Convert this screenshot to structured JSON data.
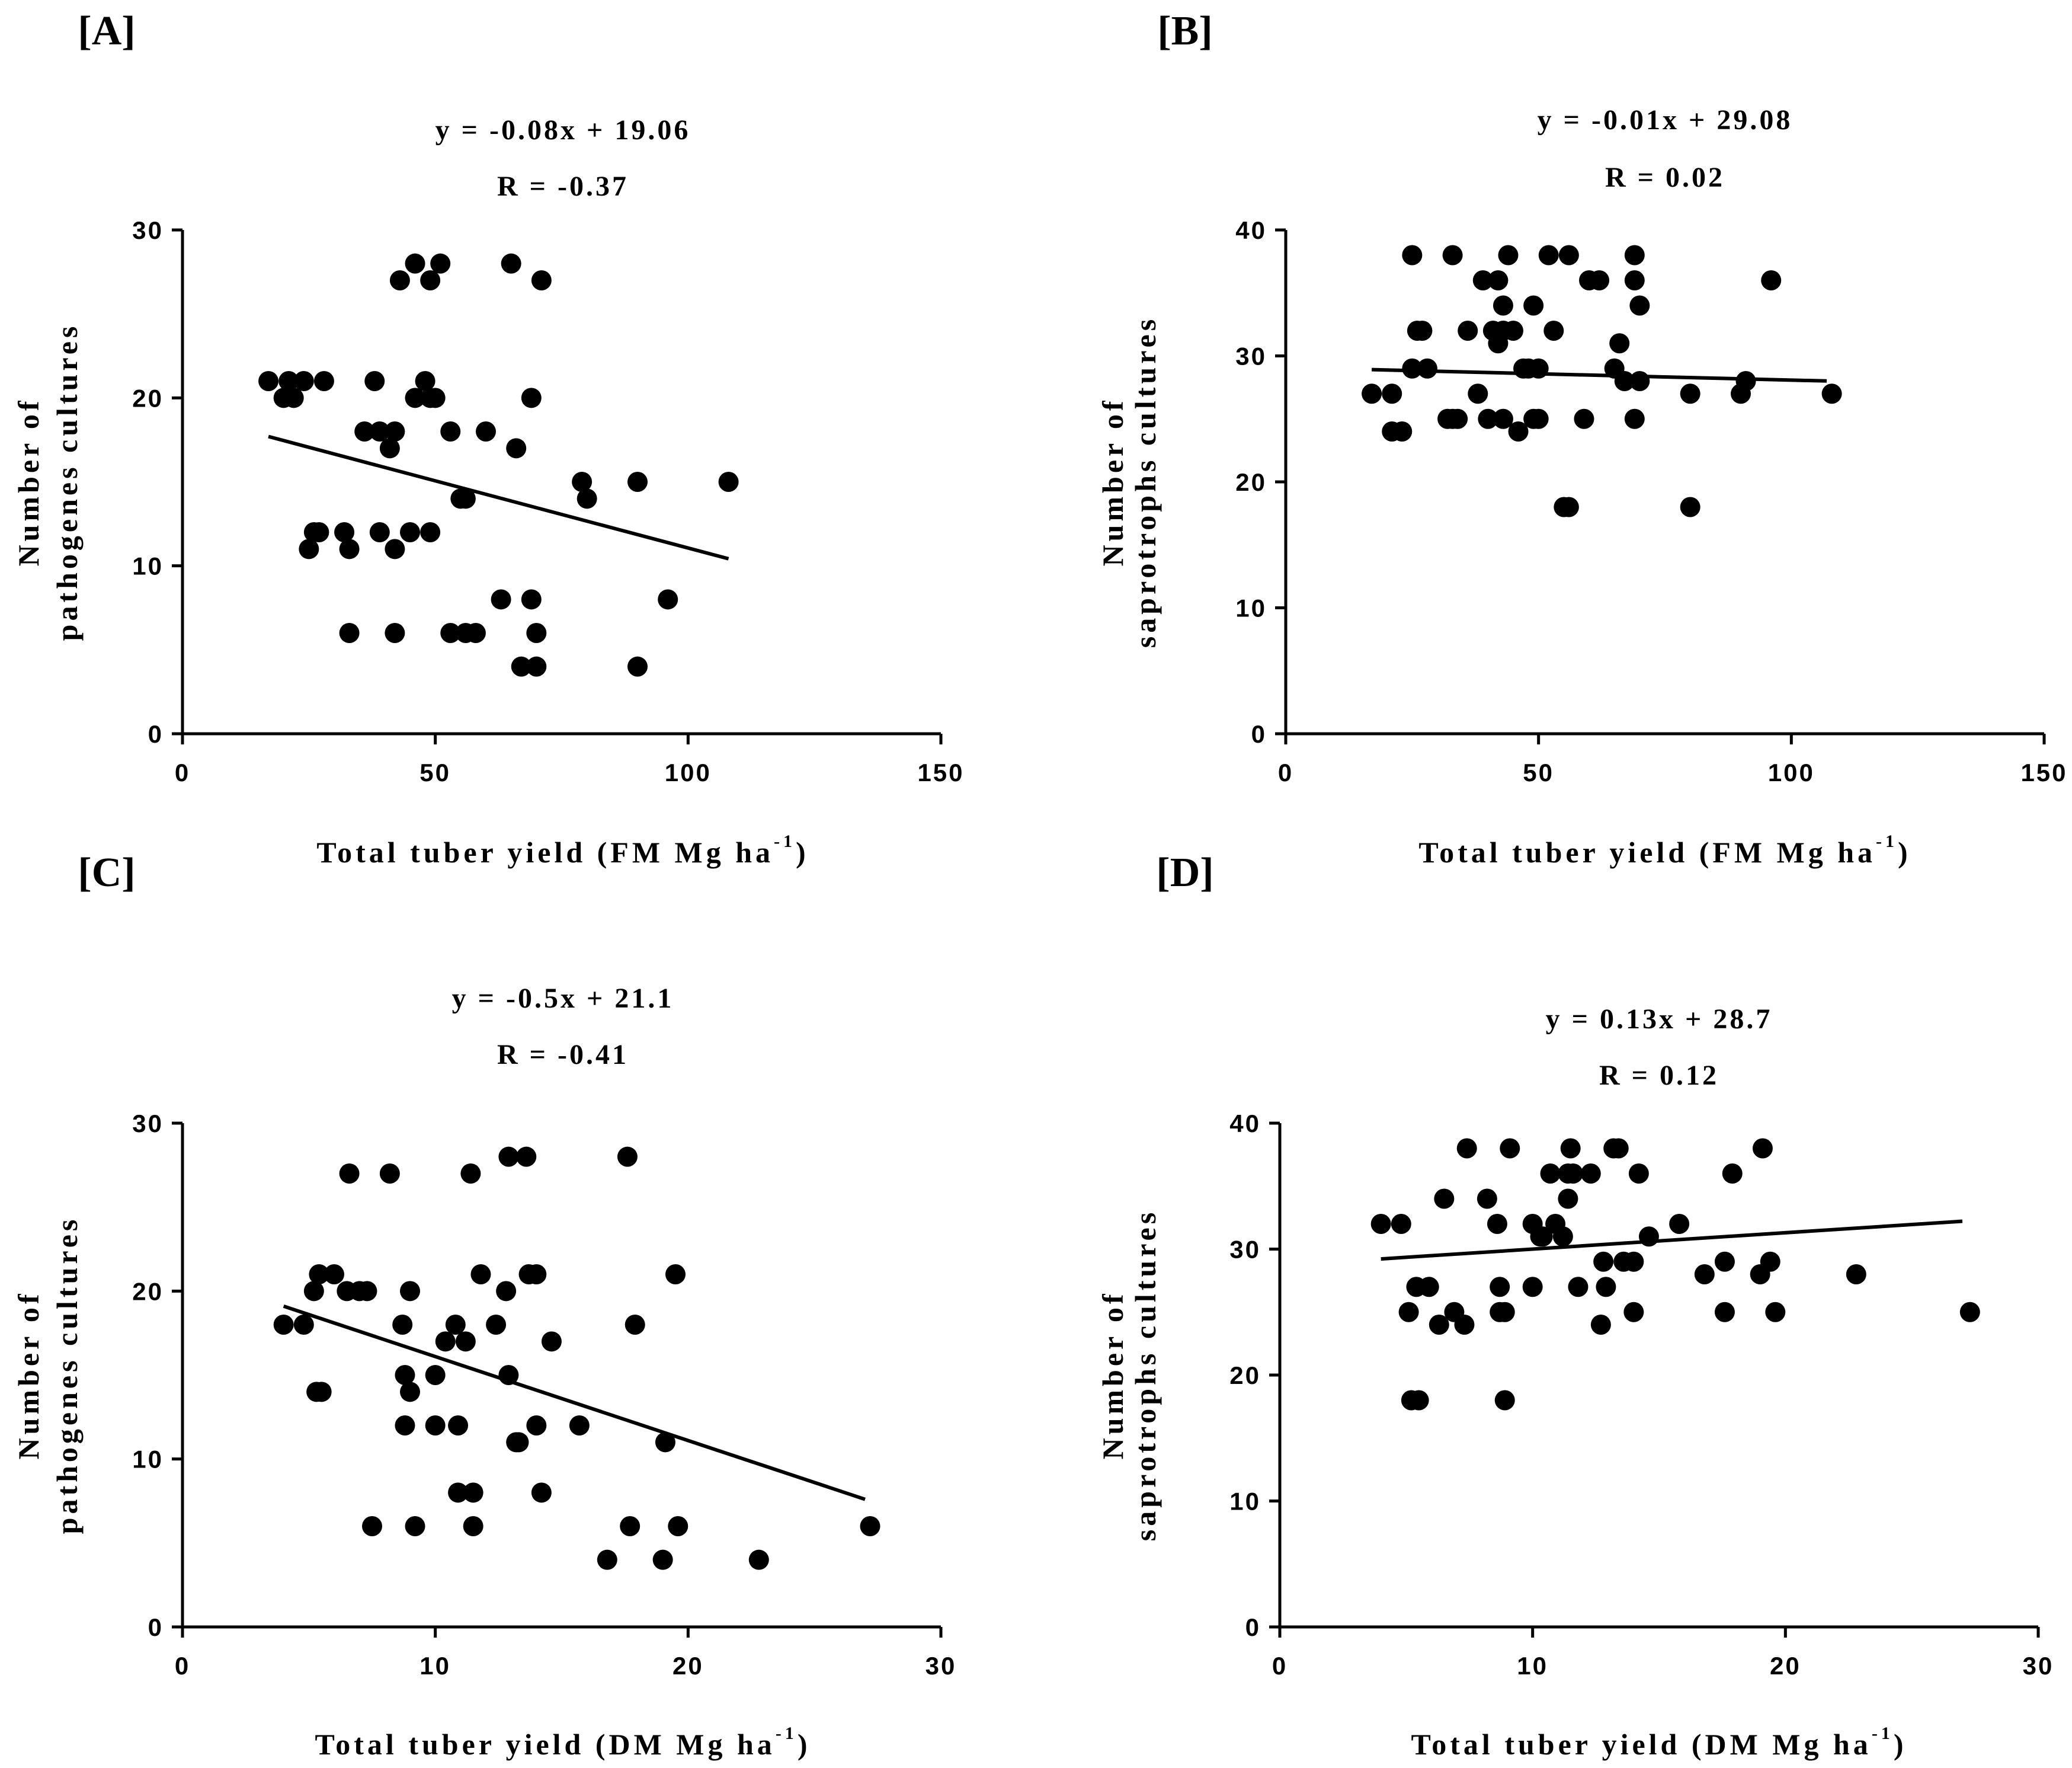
{
  "chart_data": [
    {
      "type": "scatter",
      "panel": "[A]",
      "equation": "y = -0.08x + 19.06",
      "r_label": "R = -0.37",
      "xlabel": "Total tuber yield (FM Mg ha",
      "xlabel_sup": "-1",
      "xlabel_end": ")",
      "ylabel_line1": "Number of",
      "ylabel_line2": "pathogenes cultures",
      "xlim": [
        0,
        150
      ],
      "ylim": [
        0,
        30
      ],
      "xticks": [
        0,
        50,
        100,
        150
      ],
      "yticks": [
        0,
        10,
        20,
        30
      ],
      "trend": {
        "slope": -0.08,
        "intercept": 19.06,
        "x_range": [
          17,
          108
        ]
      },
      "points": [
        [
          17,
          21
        ],
        [
          20,
          20
        ],
        [
          21,
          21
        ],
        [
          22,
          20
        ],
        [
          24,
          21
        ],
        [
          28,
          21
        ],
        [
          38,
          21
        ],
        [
          48,
          21
        ],
        [
          25,
          11
        ],
        [
          26,
          12
        ],
        [
          27,
          12
        ],
        [
          32,
          12
        ],
        [
          33,
          11
        ],
        [
          39,
          12
        ],
        [
          42,
          11
        ],
        [
          45,
          12
        ],
        [
          49,
          12
        ],
        [
          36,
          18
        ],
        [
          39,
          18
        ],
        [
          42,
          18
        ],
        [
          41,
          17
        ],
        [
          46,
          20
        ],
        [
          49,
          20
        ],
        [
          50,
          20
        ],
        [
          43,
          27
        ],
        [
          46,
          28
        ],
        [
          49,
          27
        ],
        [
          51,
          28
        ],
        [
          65,
          28
        ],
        [
          71,
          27
        ],
        [
          53,
          18
        ],
        [
          60,
          18
        ],
        [
          66,
          17
        ],
        [
          69,
          20
        ],
        [
          55,
          14
        ],
        [
          56,
          14
        ],
        [
          79,
          15
        ],
        [
          80,
          14
        ],
        [
          90,
          15
        ],
        [
          108,
          15
        ],
        [
          33,
          6
        ],
        [
          42,
          6
        ],
        [
          53,
          6
        ],
        [
          56,
          6
        ],
        [
          58,
          6
        ],
        [
          63,
          8
        ],
        [
          69,
          8
        ],
        [
          70,
          6
        ],
        [
          67,
          4
        ],
        [
          70,
          4
        ],
        [
          90,
          4
        ],
        [
          96,
          8
        ]
      ]
    },
    {
      "type": "scatter",
      "panel": "[B]",
      "equation": "y = -0.01x + 29.08",
      "r_label": "R = 0.02",
      "xlabel": "Total tuber yield (FM Mg ha",
      "xlabel_sup": "-1",
      "xlabel_end": ")",
      "ylabel_line1": "Number of",
      "ylabel_line2": "saprotrophs cultures",
      "xlim": [
        0,
        150
      ],
      "ylim": [
        0,
        40
      ],
      "xticks": [
        0,
        50,
        100,
        150
      ],
      "yticks": [
        0,
        10,
        20,
        30,
        40
      ],
      "trend": {
        "slope": -0.01,
        "intercept": 29.08,
        "x_range": [
          17,
          107
        ]
      },
      "points": [
        [
          17,
          27
        ],
        [
          21,
          27
        ],
        [
          21,
          24
        ],
        [
          23,
          24
        ],
        [
          25,
          29
        ],
        [
          25,
          38
        ],
        [
          26,
          32
        ],
        [
          27,
          32
        ],
        [
          28,
          29
        ],
        [
          32,
          25
        ],
        [
          33,
          25
        ],
        [
          33,
          38
        ],
        [
          34,
          25
        ],
        [
          36,
          32
        ],
        [
          38,
          27
        ],
        [
          39,
          36
        ],
        [
          40,
          25
        ],
        [
          41,
          32
        ],
        [
          42,
          31
        ],
        [
          42,
          36
        ],
        [
          43,
          34
        ],
        [
          43,
          32
        ],
        [
          43,
          25
        ],
        [
          44,
          38
        ],
        [
          45,
          32
        ],
        [
          46,
          24
        ],
        [
          47,
          29
        ],
        [
          48,
          29
        ],
        [
          49,
          25
        ],
        [
          49,
          34
        ],
        [
          50,
          29
        ],
        [
          50,
          25
        ],
        [
          52,
          38
        ],
        [
          53,
          32
        ],
        [
          55,
          18
        ],
        [
          56,
          18
        ],
        [
          56,
          38
        ],
        [
          59,
          25
        ],
        [
          60,
          36
        ],
        [
          62,
          36
        ],
        [
          65,
          29
        ],
        [
          66,
          31
        ],
        [
          67,
          28
        ],
        [
          69,
          25
        ],
        [
          69,
          36
        ],
        [
          69,
          38
        ],
        [
          70,
          28
        ],
        [
          70,
          34
        ],
        [
          80,
          27
        ],
        [
          80,
          18
        ],
        [
          90,
          27
        ],
        [
          91,
          28
        ],
        [
          96,
          36
        ],
        [
          108,
          27
        ]
      ]
    },
    {
      "type": "scatter",
      "panel": "[C]",
      "equation": "y = -0.5x + 21.1",
      "r_label": "R = -0.41",
      "xlabel": "Total tuber yield (DM Mg ha",
      "xlabel_sup": "-1",
      "xlabel_end": ")",
      "ylabel_line1": "Number of",
      "ylabel_line2": "pathogenes cultures",
      "xlim": [
        0,
        30
      ],
      "ylim": [
        0,
        30
      ],
      "xticks": [
        0,
        10,
        20,
        30
      ],
      "yticks": [
        0,
        10,
        20,
        30
      ],
      "trend": {
        "slope": -0.5,
        "intercept": 21.1,
        "x_range": [
          4,
          27
        ]
      },
      "points": [
        [
          4,
          18
        ],
        [
          4.8,
          18
        ],
        [
          5.2,
          20
        ],
        [
          5.3,
          14
        ],
        [
          5.5,
          14
        ],
        [
          5.4,
          21
        ],
        [
          6,
          21
        ],
        [
          6.5,
          20
        ],
        [
          7,
          20
        ],
        [
          7.3,
          20
        ],
        [
          6.6,
          27
        ],
        [
          8.2,
          27
        ],
        [
          7.5,
          6
        ],
        [
          8.7,
          18
        ],
        [
          8.8,
          15
        ],
        [
          8.8,
          12
        ],
        [
          9,
          20
        ],
        [
          9,
          14
        ],
        [
          9.2,
          6
        ],
        [
          10,
          15
        ],
        [
          10,
          12
        ],
        [
          10.4,
          17
        ],
        [
          10.8,
          18
        ],
        [
          10.9,
          8
        ],
        [
          10.9,
          12
        ],
        [
          11.2,
          17
        ],
        [
          11.4,
          27
        ],
        [
          11.5,
          8
        ],
        [
          11.5,
          6
        ],
        [
          11.8,
          21
        ],
        [
          12.4,
          18
        ],
        [
          12.8,
          20
        ],
        [
          12.9,
          28
        ],
        [
          12.9,
          15
        ],
        [
          13.2,
          11
        ],
        [
          13.3,
          11
        ],
        [
          13.6,
          28
        ],
        [
          13.7,
          21
        ],
        [
          14,
          21
        ],
        [
          14,
          12
        ],
        [
          14.2,
          8
        ],
        [
          14.6,
          17
        ],
        [
          15.7,
          12
        ],
        [
          16.8,
          4
        ],
        [
          17.6,
          28
        ],
        [
          17.7,
          6
        ],
        [
          17.9,
          18
        ],
        [
          19.1,
          11
        ],
        [
          19,
          4
        ],
        [
          19.5,
          21
        ],
        [
          19.6,
          6
        ],
        [
          22.8,
          4
        ],
        [
          27.2,
          6
        ]
      ]
    },
    {
      "type": "scatter",
      "panel": "[D]",
      "equation": "y = 0.13x + 28.7",
      "r_label": "R = 0.12",
      "xlabel": "Total tuber yield (DM Mg ha",
      "xlabel_sup": "-1",
      "xlabel_end": ")",
      "ylabel_line1": "Number of",
      "ylabel_line2": "saprotrophs cultures",
      "xlim": [
        0,
        30
      ],
      "ylim": [
        0,
        40
      ],
      "xticks": [
        0,
        10,
        20,
        30
      ],
      "yticks": [
        0,
        10,
        20,
        30,
        40
      ],
      "trend": {
        "slope": 0.13,
        "intercept": 28.7,
        "x_range": [
          4,
          27
        ]
      },
      "points": [
        [
          4,
          32
        ],
        [
          4.8,
          32
        ],
        [
          5.1,
          25
        ],
        [
          5.2,
          18
        ],
        [
          5.5,
          18
        ],
        [
          5.4,
          27
        ],
        [
          5.9,
          27
        ],
        [
          6.3,
          24
        ],
        [
          6.5,
          34
        ],
        [
          6.9,
          25
        ],
        [
          7.3,
          24
        ],
        [
          7.4,
          38
        ],
        [
          8.2,
          34
        ],
        [
          8.6,
          32
        ],
        [
          8.7,
          27
        ],
        [
          8.7,
          25
        ],
        [
          8.9,
          25
        ],
        [
          8.9,
          18
        ],
        [
          9.1,
          38
        ],
        [
          10,
          32
        ],
        [
          10,
          27
        ],
        [
          10.3,
          31
        ],
        [
          10.4,
          31
        ],
        [
          10.7,
          36
        ],
        [
          10.9,
          32
        ],
        [
          11.2,
          31
        ],
        [
          11.4,
          36
        ],
        [
          11.4,
          34
        ],
        [
          11.6,
          36
        ],
        [
          11.5,
          38
        ],
        [
          11.8,
          27
        ],
        [
          12.3,
          36
        ],
        [
          12.7,
          24
        ],
        [
          12.8,
          29
        ],
        [
          12.9,
          27
        ],
        [
          13.2,
          38
        ],
        [
          13.4,
          38
        ],
        [
          13.6,
          29
        ],
        [
          14,
          29
        ],
        [
          14,
          25
        ],
        [
          14.2,
          36
        ],
        [
          14.6,
          31
        ],
        [
          15.8,
          32
        ],
        [
          16.8,
          28
        ],
        [
          17.6,
          29
        ],
        [
          17.6,
          25
        ],
        [
          17.9,
          36
        ],
        [
          19,
          28
        ],
        [
          19.1,
          38
        ],
        [
          19.4,
          29
        ],
        [
          19.6,
          25
        ],
        [
          22.8,
          28
        ],
        [
          27.3,
          25
        ]
      ]
    }
  ]
}
